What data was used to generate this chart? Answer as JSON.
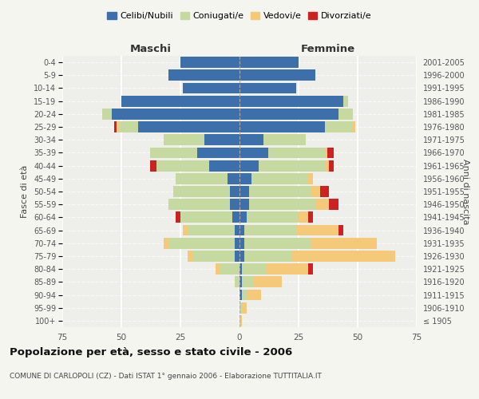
{
  "age_groups": [
    "100+",
    "95-99",
    "90-94",
    "85-89",
    "80-84",
    "75-79",
    "70-74",
    "65-69",
    "60-64",
    "55-59",
    "50-54",
    "45-49",
    "40-44",
    "35-39",
    "30-34",
    "25-29",
    "20-24",
    "15-19",
    "10-14",
    "5-9",
    "0-4"
  ],
  "birth_years": [
    "≤ 1905",
    "1906-1910",
    "1911-1915",
    "1916-1920",
    "1921-1925",
    "1926-1930",
    "1931-1935",
    "1936-1940",
    "1941-1945",
    "1946-1950",
    "1951-1955",
    "1956-1960",
    "1961-1965",
    "1966-1970",
    "1971-1975",
    "1976-1980",
    "1981-1985",
    "1986-1990",
    "1991-1995",
    "1996-2000",
    "2001-2005"
  ],
  "males": {
    "celibi": [
      0,
      0,
      0,
      0,
      0,
      2,
      2,
      2,
      3,
      4,
      4,
      5,
      13,
      18,
      15,
      43,
      54,
      50,
      24,
      30,
      25
    ],
    "coniugati": [
      0,
      0,
      0,
      2,
      8,
      18,
      28,
      20,
      22,
      26,
      24,
      22,
      22,
      20,
      17,
      8,
      4,
      0,
      0,
      0,
      0
    ],
    "vedovi": [
      0,
      0,
      0,
      0,
      2,
      2,
      2,
      2,
      0,
      0,
      0,
      0,
      0,
      0,
      0,
      1,
      0,
      0,
      0,
      0,
      0
    ],
    "divorziati": [
      0,
      0,
      0,
      0,
      0,
      0,
      0,
      0,
      2,
      0,
      0,
      0,
      3,
      0,
      0,
      1,
      0,
      0,
      0,
      0,
      0
    ]
  },
  "females": {
    "nubili": [
      0,
      0,
      1,
      1,
      1,
      2,
      2,
      2,
      3,
      4,
      4,
      5,
      8,
      12,
      10,
      36,
      42,
      44,
      24,
      32,
      25
    ],
    "coniugate": [
      0,
      1,
      2,
      5,
      10,
      20,
      28,
      22,
      22,
      28,
      26,
      24,
      28,
      24,
      18,
      12,
      6,
      2,
      0,
      0,
      0
    ],
    "vedove": [
      1,
      2,
      6,
      12,
      18,
      44,
      28,
      18,
      4,
      6,
      4,
      2,
      2,
      1,
      0,
      1,
      0,
      0,
      0,
      0,
      0
    ],
    "divorziate": [
      0,
      0,
      0,
      0,
      2,
      0,
      0,
      2,
      2,
      4,
      4,
      0,
      2,
      3,
      0,
      0,
      0,
      0,
      0,
      0,
      0
    ]
  },
  "colors": {
    "celibi_nubili": "#3d6faa",
    "coniugati": "#c5d9a0",
    "vedovi": "#f5c97a",
    "divorziati": "#cc2222"
  },
  "xlim": 75,
  "title": "Popolazione per età, sesso e stato civile - 2006",
  "subtitle": "COMUNE DI CARLOPOLI (CZ) - Dati ISTAT 1° gennaio 2006 - Elaborazione TUTTITALIA.IT",
  "ylabel_left": "Fasce di età",
  "ylabel_right": "Anni di nascita",
  "xlabel_maschi": "Maschi",
  "xlabel_femmine": "Femmine",
  "legend_labels": [
    "Celibi/Nubili",
    "Coniugati/e",
    "Vedovi/e",
    "Divorziati/e"
  ],
  "bg_color": "#f5f5f0",
  "plot_bg": "#eeeeea"
}
